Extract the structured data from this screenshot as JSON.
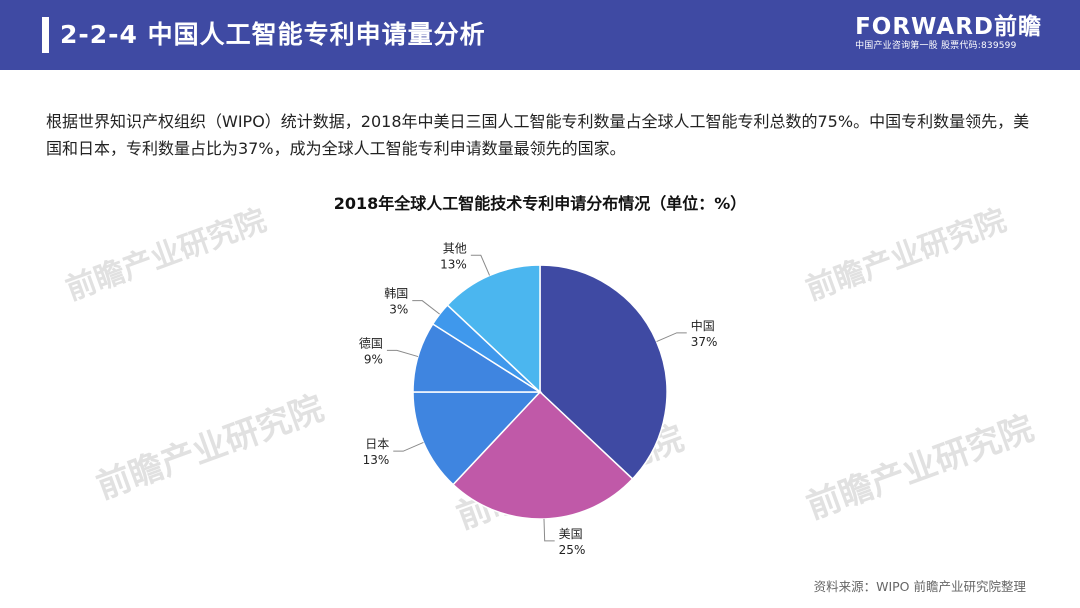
{
  "header": {
    "title": "2-2-4 中国人工智能专利申请量分析",
    "brand_name": "FORWARD前瞻",
    "brand_tagline": "中国产业咨询第一股  股票代码:839599"
  },
  "intro_text": "根据世界知识产权组织（WIPO）统计数据，2018年中美日三国人工智能专利数量占全球人工智能专利总数的75%。中国专利数量领先，美国和日本，专利数量占比为37%，成为全球人工智能专利申请数量最领先的国家。",
  "watermark": "前瞻产业研究院",
  "source": "资料来源：WIPO 前瞻产业研究院整理",
  "chart_data": {
    "type": "pie",
    "title": "2018年全球人工智能技术专利申请分布情况（单位：%）",
    "slices": [
      {
        "label": "中国",
        "value": 37,
        "display": "37%",
        "color": "#3f4aa3"
      },
      {
        "label": "美国",
        "value": 25,
        "display": "25%",
        "color": "#c059a8"
      },
      {
        "label": "日本",
        "value": 13,
        "display": "13%",
        "color": "#3f85e0"
      },
      {
        "label": "德国",
        "value": 9,
        "display": "9%",
        "color": "#3f85e0"
      },
      {
        "label": "韩国",
        "value": 3,
        "display": "3%",
        "color": "#3f98ec"
      },
      {
        "label": "其他",
        "value": 13,
        "display": "13%",
        "color": "#4bb6ef"
      }
    ],
    "start_angle_deg": 0,
    "direction": "clockwise",
    "legend": "none",
    "labels": "outside-with-leader-lines"
  }
}
